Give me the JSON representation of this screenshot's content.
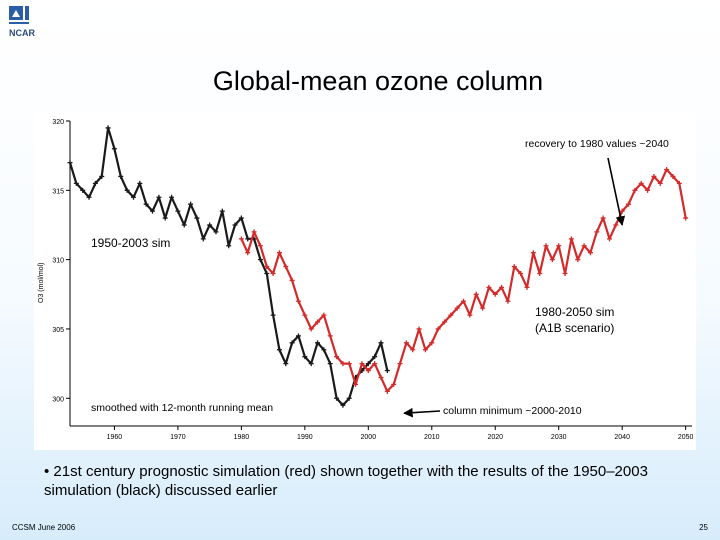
{
  "logo": {
    "text": "NCAR"
  },
  "slide": {
    "title": "Global-mean ozone column",
    "bullet": "• 21st century prognostic simulation (red) shown together with the results of the 1950–2003 simulation (black) discussed earlier",
    "footer_left": "CCSM June 2006",
    "footer_right": "25"
  },
  "colors": {
    "black_series": "#1a1a1a",
    "red_series": "#d42a2a"
  },
  "chart_data": {
    "type": "line",
    "title": "",
    "xlabel": "",
    "ylabel": "O3 (mol/mol)",
    "xlim": [
      1953,
      2051
    ],
    "ylim": [
      298,
      320
    ],
    "x_ticks": [
      1960,
      1970,
      1980,
      1990,
      2000,
      2010,
      2020,
      2030,
      2040,
      2050
    ],
    "y_ticks": [
      300,
      305,
      310,
      315,
      320
    ],
    "grid": false,
    "series": [
      {
        "id": "black",
        "color": "#1a1a1a",
        "x": [
          1953,
          1954,
          1955,
          1956,
          1957,
          1958,
          1959,
          1960,
          1961,
          1962,
          1963,
          1964,
          1965,
          1966,
          1967,
          1968,
          1969,
          1970,
          1971,
          1972,
          1973,
          1974,
          1975,
          1976,
          1977,
          1978,
          1979,
          1980,
          1981,
          1982,
          1983,
          1984,
          1985,
          1986,
          1987,
          1988,
          1989,
          1990,
          1991,
          1992,
          1993,
          1994,
          1995,
          1996,
          1997,
          1998,
          1999,
          2000,
          2001,
          2002,
          2003
        ],
        "y": [
          317,
          315.5,
          315,
          314.5,
          315.5,
          316,
          319.5,
          318,
          316,
          315,
          314.5,
          315.5,
          314,
          313.5,
          314.5,
          313,
          314.5,
          313.5,
          312.5,
          314,
          313,
          311.5,
          312.5,
          312,
          313.5,
          311,
          312.5,
          313,
          311.5,
          311.5,
          310,
          309,
          306,
          303.5,
          302.5,
          304,
          304.5,
          303,
          302.5,
          304,
          303.5,
          302.5,
          300,
          299.5,
          300,
          301.5,
          302,
          302.5,
          303,
          304,
          302
        ]
      },
      {
        "id": "red",
        "color": "#d42a2a",
        "x": [
          1980,
          1981,
          1982,
          1983,
          1984,
          1985,
          1986,
          1987,
          1988,
          1989,
          1990,
          1991,
          1992,
          1993,
          1994,
          1995,
          1996,
          1997,
          1998,
          1999,
          2000,
          2001,
          2002,
          2003,
          2004,
          2005,
          2006,
          2007,
          2008,
          2009,
          2010,
          2011,
          2012,
          2013,
          2014,
          2015,
          2016,
          2017,
          2018,
          2019,
          2020,
          2021,
          2022,
          2023,
          2024,
          2025,
          2026,
          2027,
          2028,
          2029,
          2030,
          2031,
          2032,
          2033,
          2034,
          2035,
          2036,
          2037,
          2038,
          2039,
          2040,
          2041,
          2042,
          2043,
          2044,
          2045,
          2046,
          2047,
          2048,
          2049,
          2050
        ],
        "y": [
          311.5,
          310.5,
          312,
          311,
          309.5,
          309,
          310.5,
          309.5,
          308.5,
          307,
          306,
          305,
          305.5,
          306,
          304.5,
          303,
          302.5,
          302.5,
          301,
          302.5,
          302,
          302.5,
          301.5,
          300.5,
          301,
          302.5,
          304,
          303.5,
          305,
          303.5,
          304,
          305,
          305.5,
          306,
          306.5,
          307,
          306,
          307.5,
          306.5,
          308,
          307.5,
          308,
          307,
          309.5,
          309,
          308,
          310.5,
          309,
          311,
          310,
          311,
          309,
          311.5,
          310,
          311,
          310.5,
          312,
          313,
          311.5,
          312.5,
          313.5,
          314,
          315,
          315.5,
          315,
          316,
          315.5,
          316.5,
          316,
          315.5,
          313
        ]
      }
    ],
    "annotations": [
      {
        "id": "recovery",
        "text": "recovery to 1980 values ~2040",
        "x": 2040,
        "y": 312.5
      },
      {
        "id": "sim1950",
        "text": "1950-2003 sim"
      },
      {
        "id": "sim1980_1",
        "text": "1980-2050 sim"
      },
      {
        "id": "sim1980_2",
        "text": "(A1B scenario)"
      },
      {
        "id": "smoothed",
        "text": "smoothed with 12-month running mean"
      },
      {
        "id": "minimum",
        "text": "column minimum ~2000-2010",
        "x": 2005,
        "y": 299.5
      }
    ]
  }
}
